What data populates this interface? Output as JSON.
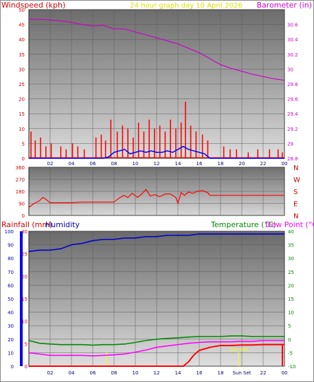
{
  "header": {
    "title": "24 hour graph day  10 April 2026",
    "wind_label": "Windspeed (kph)",
    "baro_label": "Barometer (in)"
  },
  "colors": {
    "wind": "#ff0000",
    "gust_avg": "#0000ff",
    "barometer": "#cc00cc",
    "temperature": "#008800",
    "dewpoint": "#ff00ff",
    "humidity": "#0000cc",
    "rain": "#ff0000",
    "sun": "#ffff00",
    "title": "#dddd00",
    "direction": "#cc0000"
  },
  "chart_data": [
    {
      "type": "line",
      "panel": "wind-barometer",
      "title": "24 hour graph day  10 April 2026",
      "ylabel": "Windspeed (kph)",
      "y2label": "Barometer (in)",
      "x_ticks": [
        "02",
        "04",
        "06",
        "08",
        "10",
        "12",
        "14",
        "16",
        "18",
        "20",
        "22",
        "00"
      ],
      "ylim": [
        0,
        50
      ],
      "y_ticks": [
        0,
        5,
        10,
        15,
        20,
        25,
        30,
        35,
        40,
        45,
        50
      ],
      "y2lim": [
        28.8,
        30.8
      ],
      "y2_ticks": [
        "28.8",
        "29",
        "29.2",
        "29.4",
        "29.6",
        "29.8",
        "30",
        "30.2",
        "30.4",
        "30.6"
      ],
      "grid": true,
      "series": [
        {
          "name": "Barometer",
          "axis": "right",
          "x": [
            0,
            1,
            2,
            3,
            4,
            5,
            6,
            7,
            8,
            9,
            10,
            11,
            12,
            13,
            14,
            15,
            16,
            17,
            18,
            19,
            20,
            21,
            22,
            23,
            24
          ],
          "values": [
            30.67,
            30.67,
            30.66,
            30.65,
            30.63,
            30.6,
            30.58,
            30.59,
            30.54,
            30.54,
            30.5,
            30.46,
            30.42,
            30.38,
            30.34,
            30.28,
            30.22,
            30.14,
            30.06,
            30.01,
            29.97,
            29.93,
            29.9,
            29.87,
            29.85
          ]
        },
        {
          "name": "Average",
          "axis": "left",
          "x": [
            0,
            2,
            4,
            6,
            7,
            7.5,
            8,
            8.5,
            9,
            9.5,
            10,
            10.5,
            11,
            11.5,
            12,
            12.5,
            13,
            13.5,
            14,
            14.5,
            15,
            15.5,
            16,
            16.5,
            17,
            18,
            24
          ],
          "values": [
            0,
            0,
            0,
            0,
            0,
            0.5,
            2,
            2.5,
            3,
            1.5,
            2,
            2.5,
            2,
            2.5,
            2,
            2,
            2.5,
            2,
            3,
            4,
            3,
            2.5,
            2,
            1.5,
            0,
            0,
            0
          ]
        },
        {
          "name": "Wind Speed",
          "axis": "left",
          "x": [
            0.2,
            0.6,
            1.1,
            1.6,
            2.1,
            3.0,
            3.5,
            4.1,
            4.6,
            5.2,
            6.3,
            6.8,
            7.2,
            7.7,
            8.3,
            8.8,
            9.3,
            9.8,
            10.3,
            10.8,
            11.3,
            11.8,
            12.3,
            12.8,
            13.3,
            13.8,
            14.3,
            14.7,
            15.2,
            15.7,
            16.3,
            16.8,
            18.3,
            18.9,
            19.5,
            20.6,
            21.5,
            22.6,
            23.4,
            23.8
          ],
          "values": [
            9,
            6,
            7,
            4,
            5,
            4,
            3,
            5,
            4,
            3,
            7,
            8,
            6,
            13,
            9,
            11,
            10,
            7,
            12,
            9,
            13,
            10,
            11,
            9,
            13,
            10,
            12,
            19,
            11,
            9,
            8,
            6,
            4,
            3,
            3,
            2,
            3,
            3,
            3,
            2
          ]
        }
      ]
    },
    {
      "type": "line",
      "panel": "wind-direction",
      "ylim": [
        0,
        360
      ],
      "y_ticks": [
        0,
        90,
        180,
        270,
        360
      ],
      "direction_labels": [
        "N",
        "W",
        "S",
        "E",
        "N"
      ],
      "series": [
        {
          "name": "Direction",
          "x": [
            0,
            0.5,
            1,
            1.3,
            1.6,
            2,
            3,
            4,
            5,
            6,
            7,
            8,
            8.4,
            8.9,
            9.3,
            9.7,
            10.2,
            10.6,
            11,
            11.4,
            11.8,
            12.3,
            12.8,
            13.3,
            13.8,
            14,
            14.3,
            14.6,
            15,
            15.4,
            15.8,
            16.3,
            16.8,
            17,
            24
          ],
          "values": [
            60,
            90,
            110,
            135,
            120,
            95,
            95,
            95,
            100,
            100,
            100,
            100,
            125,
            150,
            135,
            165,
            135,
            160,
            195,
            145,
            155,
            140,
            160,
            160,
            135,
            90,
            170,
            150,
            175,
            165,
            180,
            185,
            170,
            150,
            150
          ]
        }
      ]
    },
    {
      "type": "line",
      "panel": "temperature-rain-humidity",
      "labels": {
        "rain": "Rainfall (mm)",
        "humidity": "Humidity",
        "temperature": "Temperature (°C)",
        "dewpoint": "Dew Point (°C)"
      },
      "x_ticks": [
        "02",
        "04",
        "06",
        "08",
        "10",
        "12",
        "14",
        "16",
        "18",
        "Sun Set",
        "22",
        "00"
      ],
      "humidity_ticks": [
        0,
        10,
        20,
        30,
        40,
        50,
        60,
        70,
        80,
        90,
        100
      ],
      "rain_ticks": [
        0,
        5,
        10,
        15,
        20,
        25,
        30
      ],
      "temp_ticks": [
        40,
        35,
        30,
        25,
        20,
        15,
        10,
        5,
        0,
        -5,
        -10
      ],
      "sun_markers": [
        {
          "x": 7.3,
          "label": ""
        },
        {
          "x": 19.7,
          "label": "Sun Set"
        }
      ],
      "series": [
        {
          "name": "Humidity",
          "axis": "humidity",
          "x": [
            0,
            1,
            2,
            3,
            4,
            5,
            6,
            7,
            8,
            9,
            10,
            11,
            12,
            13,
            14,
            15,
            16,
            17,
            18,
            19,
            20,
            21,
            22,
            23,
            24
          ],
          "values": [
            85,
            86,
            86,
            87,
            90,
            91,
            93,
            94,
            94,
            95,
            95,
            96,
            96,
            97,
            97,
            97,
            98,
            98,
            98,
            98,
            98,
            98,
            98,
            98,
            98
          ]
        },
        {
          "name": "Temperature",
          "axis": "temp",
          "x": [
            0,
            1,
            2,
            3,
            4,
            5,
            6,
            7,
            8,
            9,
            10,
            11,
            12,
            13,
            14,
            15,
            16,
            17,
            18,
            19,
            20,
            21,
            22,
            23,
            24
          ],
          "values": [
            -0.5,
            -1.5,
            -1.8,
            -2,
            -2,
            -2,
            -2.2,
            -2,
            -2,
            -1.8,
            -1.2,
            -0.5,
            0,
            0.3,
            0.5,
            0.8,
            1,
            1,
            1,
            1.2,
            1.2,
            1,
            1,
            1,
            1
          ]
        },
        {
          "name": "Dew Point",
          "axis": "temp",
          "x": [
            0,
            1,
            2,
            3,
            4,
            5,
            6,
            7,
            8,
            9,
            10,
            11,
            12,
            13,
            14,
            15,
            16,
            17,
            18,
            19,
            20,
            21,
            22,
            23,
            24
          ],
          "values": [
            -5,
            -5.5,
            -6,
            -6,
            -6,
            -6,
            -6.2,
            -6,
            -5.8,
            -5.5,
            -4.8,
            -4,
            -3,
            -2.5,
            -2,
            -1.5,
            -1.2,
            -1,
            -1,
            -1,
            -0.8,
            -0.8,
            -0.5,
            -0.5,
            -0.5
          ]
        },
        {
          "name": "Rainfall",
          "axis": "rain",
          "x": [
            0,
            2,
            4,
            6,
            8,
            10,
            12,
            14,
            14.5,
            15,
            15.5,
            16,
            17,
            18,
            18.5,
            19,
            20,
            21,
            22,
            23,
            24
          ],
          "values": [
            0,
            0,
            0,
            0,
            0,
            0,
            0,
            0,
            0,
            1,
            2.5,
            3.5,
            4.2,
            4.6,
            4.6,
            4.6,
            4.7,
            4.7,
            4.8,
            4.8,
            4.8
          ]
        }
      ]
    }
  ]
}
